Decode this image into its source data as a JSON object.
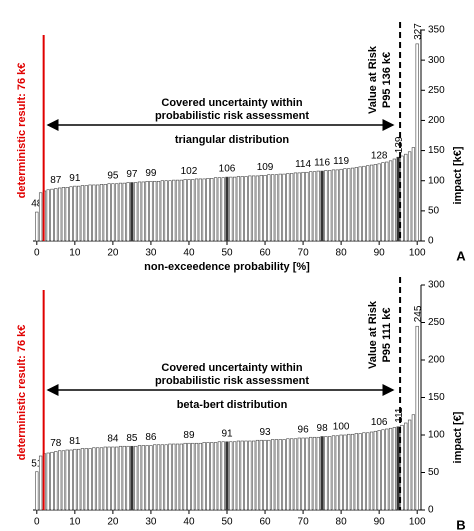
{
  "chart_data": [
    {
      "type": "bar",
      "panel_label": "A",
      "distribution_label": "triangular distribution",
      "covered_text": [
        "Covered uncertainty within",
        "probabilistic risk assessment"
      ],
      "deterministic_label": "deterministic result: 76 k€",
      "var_label": [
        "Value at Risk",
        "P95 136 k€"
      ],
      "xlabel": "non-exceedence probability [%]",
      "ylabel": "impact [k€]",
      "color": "#ffffff",
      "edge_color": "#444444",
      "highlight_color": "#333333",
      "xlim": [
        -1,
        101
      ],
      "xticks": [
        0,
        10,
        20,
        30,
        40,
        50,
        60,
        70,
        80,
        90,
        100
      ],
      "ylim": [
        0,
        350
      ],
      "yticks": [
        0,
        50,
        100,
        150,
        200,
        250,
        300,
        350
      ],
      "x": [
        0,
        1,
        2,
        3,
        4,
        5,
        6,
        7,
        8,
        9,
        10,
        11,
        12,
        13,
        14,
        15,
        16,
        17,
        18,
        19,
        20,
        21,
        22,
        23,
        24,
        25,
        26,
        27,
        28,
        29,
        30,
        31,
        32,
        33,
        34,
        35,
        36,
        37,
        38,
        39,
        40,
        41,
        42,
        43,
        44,
        45,
        46,
        47,
        48,
        49,
        50,
        51,
        52,
        53,
        54,
        55,
        56,
        57,
        58,
        59,
        60,
        61,
        62,
        63,
        64,
        65,
        66,
        67,
        68,
        69,
        70,
        71,
        72,
        73,
        74,
        75,
        76,
        77,
        78,
        79,
        80,
        81,
        82,
        83,
        84,
        85,
        86,
        87,
        88,
        89,
        90,
        91,
        92,
        93,
        94,
        95,
        96,
        97,
        98,
        99,
        100
      ],
      "values": [
        48,
        80,
        83,
        85,
        86,
        87,
        88,
        89,
        89,
        90,
        91,
        91,
        92,
        92,
        93,
        93,
        93,
        94,
        94,
        95,
        95,
        95,
        96,
        96,
        97,
        97,
        97,
        98,
        98,
        99,
        99,
        99,
        99,
        100,
        100,
        100,
        101,
        101,
        101,
        102,
        102,
        102,
        103,
        103,
        103,
        104,
        104,
        105,
        105,
        105,
        106,
        106,
        106,
        107,
        107,
        107,
        108,
        108,
        108,
        109,
        109,
        110,
        110,
        110,
        111,
        111,
        112,
        112,
        113,
        113,
        114,
        114,
        115,
        115,
        116,
        116,
        117,
        117,
        118,
        118,
        119,
        120,
        120,
        121,
        122,
        123,
        124,
        125,
        126,
        127,
        128,
        130,
        131,
        133,
        136,
        139,
        141,
        144,
        148,
        155,
        327
      ]
    },
    {
      "type": "bar",
      "panel_label": "B",
      "distribution_label": "beta-bert distribution",
      "covered_text": [
        "Covered uncertainty within",
        "probabilistic risk assessment"
      ],
      "deterministic_label": "deterministic result: 76 k€",
      "var_label": [
        "Value at Risk",
        "P95 111 k€"
      ],
      "xlabel": "non-exceedence probability [%]",
      "ylabel": "impact [€]",
      "color": "#ffffff",
      "edge_color": "#444444",
      "highlight_color": "#333333",
      "xlim": [
        -1,
        101
      ],
      "xticks": [
        0,
        10,
        20,
        30,
        40,
        50,
        60,
        70,
        80,
        90,
        100
      ],
      "ylim": [
        0,
        300
      ],
      "yticks": [
        0,
        50,
        100,
        150,
        200,
        250,
        300
      ],
      "x": [
        0,
        1,
        2,
        3,
        4,
        5,
        6,
        7,
        8,
        9,
        10,
        11,
        12,
        13,
        14,
        15,
        16,
        17,
        18,
        19,
        20,
        21,
        22,
        23,
        24,
        25,
        26,
        27,
        28,
        29,
        30,
        31,
        32,
        33,
        34,
        35,
        36,
        37,
        38,
        39,
        40,
        41,
        42,
        43,
        44,
        45,
        46,
        47,
        48,
        49,
        50,
        51,
        52,
        53,
        54,
        55,
        56,
        57,
        58,
        59,
        60,
        61,
        62,
        63,
        64,
        65,
        66,
        67,
        68,
        69,
        70,
        71,
        72,
        73,
        74,
        75,
        76,
        77,
        78,
        79,
        80,
        81,
        82,
        83,
        84,
        85,
        86,
        87,
        88,
        89,
        90,
        91,
        92,
        93,
        94,
        95,
        96,
        97,
        98,
        99,
        100
      ],
      "values": [
        51,
        72,
        75,
        76,
        77,
        78,
        79,
        79,
        80,
        80,
        81,
        81,
        82,
        82,
        82,
        83,
        83,
        83,
        84,
        84,
        84,
        84,
        85,
        85,
        85,
        85,
        85,
        86,
        86,
        86,
        86,
        87,
        87,
        87,
        87,
        88,
        88,
        88,
        88,
        89,
        89,
        89,
        89,
        89,
        90,
        90,
        90,
        90,
        91,
        91,
        91,
        91,
        91,
        92,
        92,
        92,
        92,
        92,
        93,
        93,
        93,
        93,
        94,
        94,
        94,
        94,
        95,
        95,
        95,
        96,
        96,
        96,
        97,
        97,
        97,
        98,
        98,
        98,
        99,
        99,
        100,
        100,
        101,
        101,
        102,
        102,
        103,
        103,
        104,
        105,
        106,
        107,
        108,
        109,
        110,
        111,
        113,
        116,
        120,
        127,
        245
      ]
    }
  ]
}
